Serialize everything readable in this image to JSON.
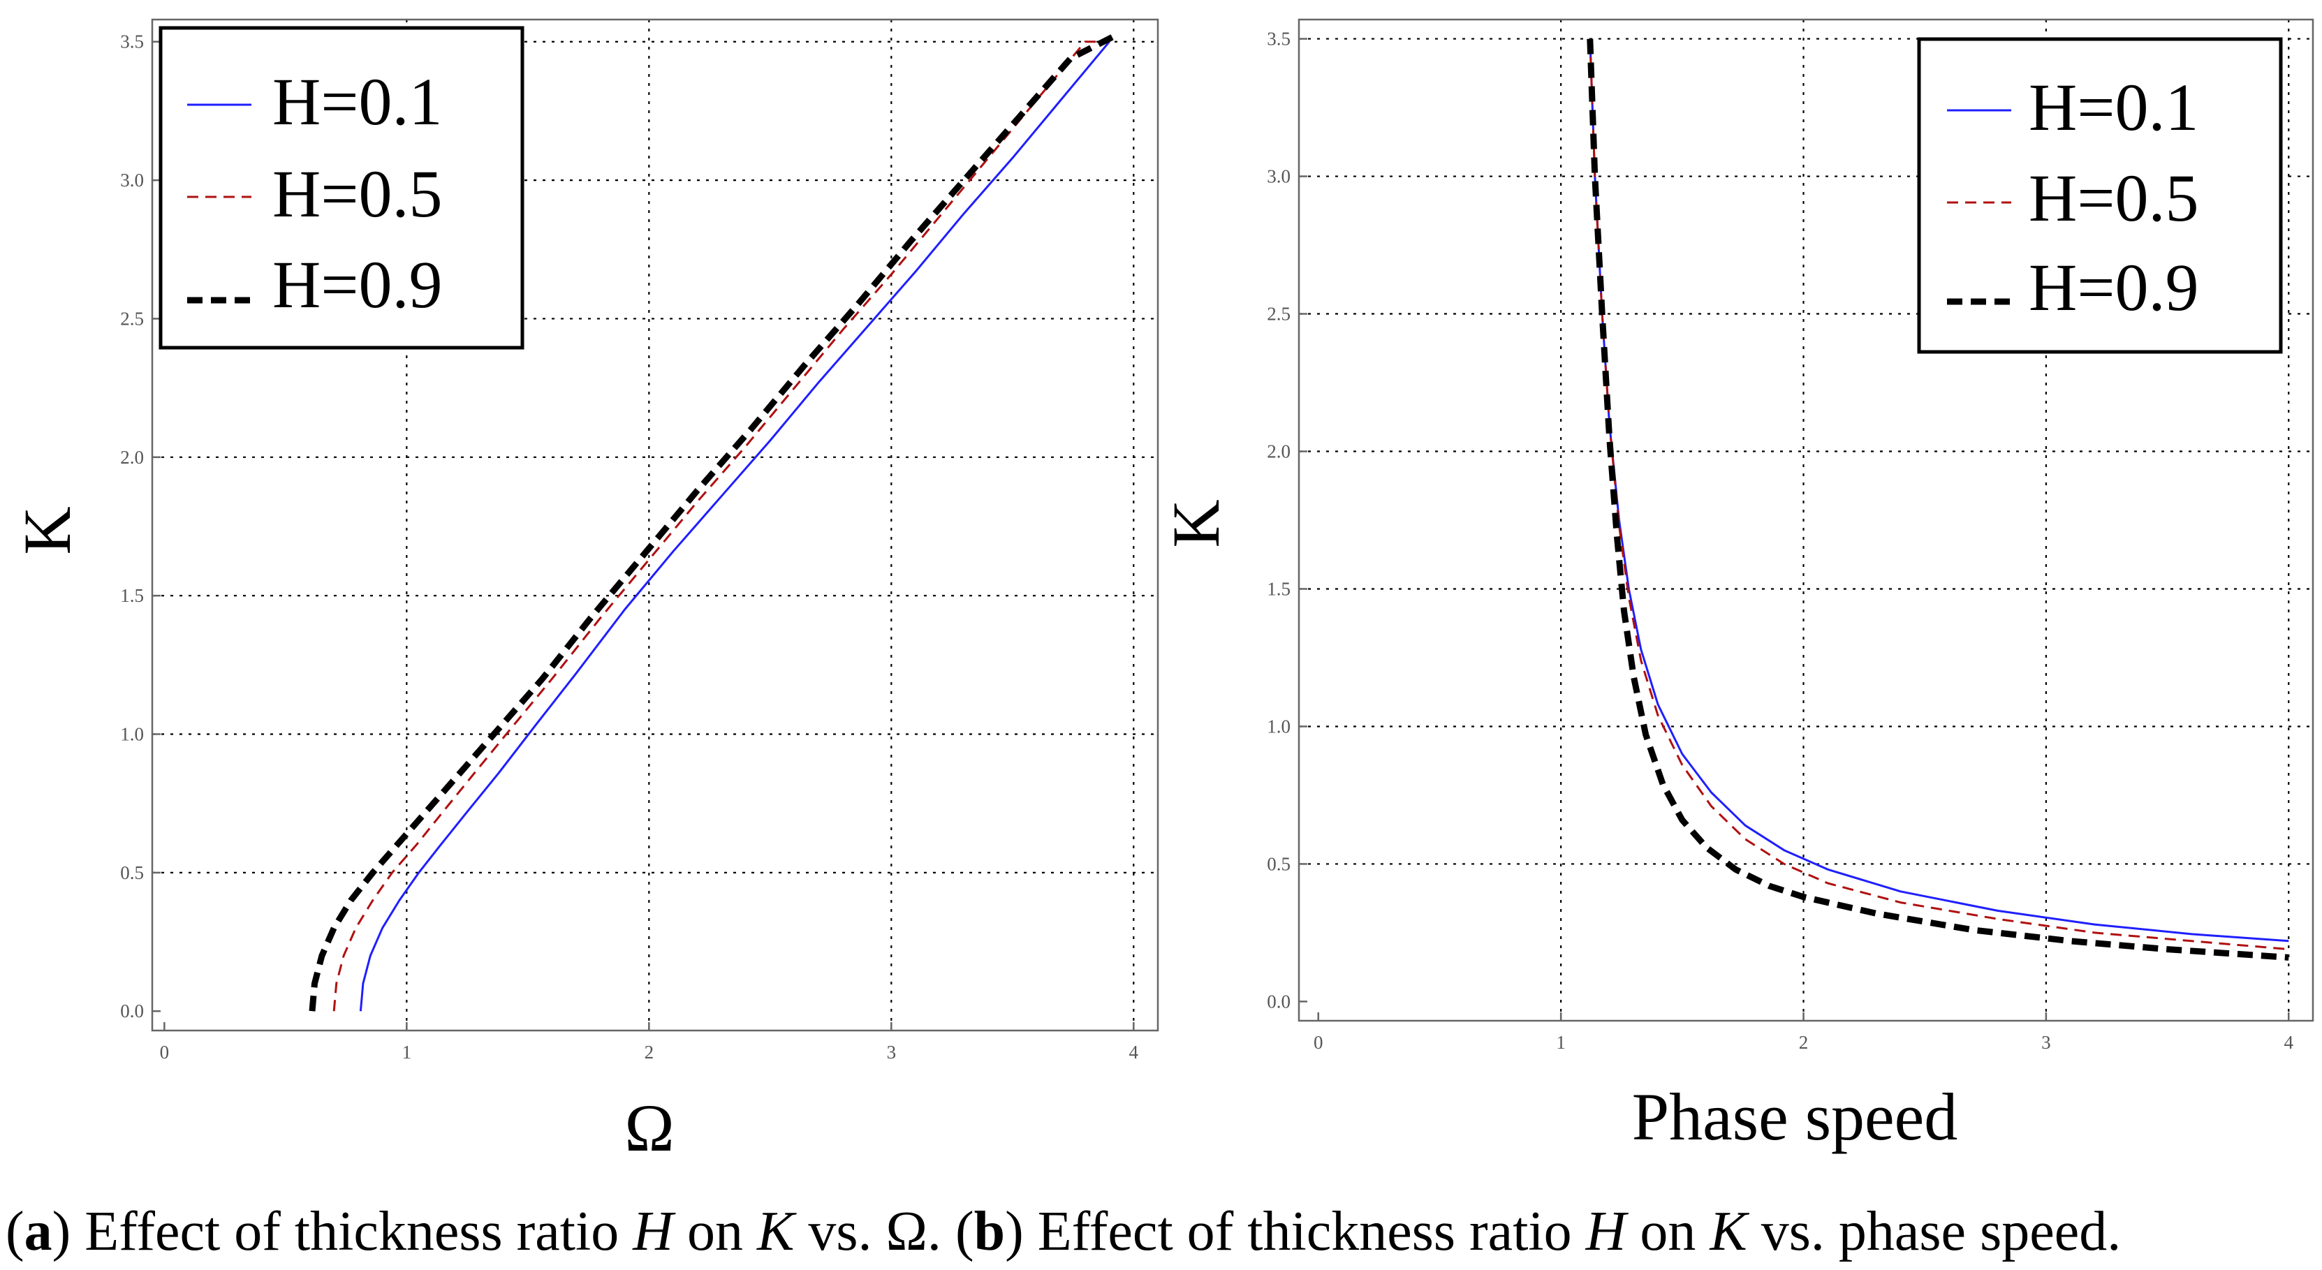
{
  "chart_data": [
    {
      "id": "a",
      "type": "line",
      "xlabel": "Ω",
      "ylabel": "K",
      "xlim": [
        -0.05,
        4.1
      ],
      "ylim": [
        -0.07,
        3.58
      ],
      "xticks": [
        0,
        1,
        2,
        3,
        4
      ],
      "yticks": [
        0.0,
        0.5,
        1.0,
        1.5,
        2.0,
        2.5,
        3.0,
        3.5
      ],
      "xtick_labels": [
        "0",
        "1",
        "2",
        "3",
        "4"
      ],
      "ytick_labels": [
        "0.0",
        "0.5",
        "1.0",
        "1.5",
        "2.0",
        "2.5",
        "3.0",
        "3.5"
      ],
      "grid": true,
      "legend_position": "top-left",
      "series": [
        {
          "name": "H=0.1",
          "color": "#1f1fff",
          "style": "solid",
          "x": [
            0.81,
            0.82,
            0.85,
            0.9,
            0.97,
            1.05,
            1.14,
            1.25,
            1.38,
            1.53,
            1.7,
            1.9,
            2.1,
            2.3,
            2.5,
            2.7,
            2.9,
            3.1,
            3.3,
            3.5,
            3.7,
            3.9
          ],
          "y": [
            0.0,
            0.1,
            0.2,
            0.3,
            0.4,
            0.5,
            0.6,
            0.72,
            0.86,
            1.03,
            1.22,
            1.45,
            1.66,
            1.86,
            2.06,
            2.27,
            2.47,
            2.67,
            2.88,
            3.08,
            3.29,
            3.5
          ]
        },
        {
          "name": "H=0.5",
          "color": "#b01010",
          "style": "dashed",
          "x": [
            0.7,
            0.71,
            0.74,
            0.79,
            0.86,
            0.94,
            1.04,
            1.15,
            1.28,
            1.43,
            1.6,
            1.8,
            2.0,
            2.2,
            2.4,
            2.6,
            2.8,
            3.0,
            3.2,
            3.4,
            3.6,
            3.8,
            3.9
          ],
          "y": [
            0.0,
            0.1,
            0.2,
            0.3,
            0.4,
            0.5,
            0.6,
            0.72,
            0.86,
            1.02,
            1.2,
            1.42,
            1.63,
            1.84,
            2.04,
            2.25,
            2.46,
            2.66,
            2.87,
            3.08,
            3.29,
            3.5,
            3.5
          ]
        },
        {
          "name": "H=0.9",
          "color": "#000000",
          "style": "dashed-bold",
          "x": [
            0.61,
            0.62,
            0.65,
            0.7,
            0.77,
            0.86,
            0.96,
            1.08,
            1.22,
            1.38,
            1.56,
            1.76,
            1.98,
            2.2,
            2.42,
            2.64,
            2.86,
            3.08,
            3.3,
            3.52,
            3.74,
            3.92
          ],
          "y": [
            0.0,
            0.1,
            0.2,
            0.3,
            0.4,
            0.5,
            0.6,
            0.72,
            0.86,
            1.02,
            1.2,
            1.42,
            1.65,
            1.88,
            2.1,
            2.33,
            2.55,
            2.78,
            3.0,
            3.22,
            3.44,
            3.52
          ]
        }
      ]
    },
    {
      "id": "b",
      "type": "line",
      "xlabel": "Phase speed",
      "ylabel": "K",
      "xlim": [
        -0.08,
        4.1
      ],
      "ylim": [
        -0.07,
        3.57
      ],
      "xticks": [
        0,
        1,
        2,
        3,
        4
      ],
      "yticks": [
        0.0,
        0.5,
        1.0,
        1.5,
        2.0,
        2.5,
        3.0,
        3.5
      ],
      "xtick_labels": [
        "0",
        "1",
        "2",
        "3",
        "4"
      ],
      "ytick_labels": [
        "0.0",
        "0.5",
        "1.0",
        "1.5",
        "2.0",
        "2.5",
        "3.0",
        "3.5"
      ],
      "grid": true,
      "legend_position": "top-right",
      "series": [
        {
          "name": "H=0.1",
          "color": "#1f1fff",
          "style": "solid",
          "x": [
            1.12,
            1.14,
            1.17,
            1.2,
            1.24,
            1.28,
            1.33,
            1.4,
            1.5,
            1.62,
            1.76,
            1.92,
            2.1,
            2.4,
            2.8,
            3.2,
            3.6,
            4.0
          ],
          "y": [
            3.5,
            3.0,
            2.5,
            2.1,
            1.75,
            1.5,
            1.28,
            1.08,
            0.9,
            0.76,
            0.64,
            0.55,
            0.48,
            0.4,
            0.33,
            0.28,
            0.245,
            0.22
          ]
        },
        {
          "name": "H=0.5",
          "color": "#b01010",
          "style": "dashed",
          "x": [
            1.12,
            1.14,
            1.17,
            1.2,
            1.24,
            1.28,
            1.33,
            1.4,
            1.5,
            1.62,
            1.76,
            1.92,
            2.1,
            2.4,
            2.8,
            3.2,
            3.6,
            4.0
          ],
          "y": [
            3.5,
            3.0,
            2.5,
            2.1,
            1.73,
            1.47,
            1.24,
            1.04,
            0.86,
            0.71,
            0.59,
            0.5,
            0.43,
            0.36,
            0.3,
            0.25,
            0.22,
            0.19
          ]
        },
        {
          "name": "H=0.9",
          "color": "#000000",
          "style": "dashed-bold",
          "x": [
            1.12,
            1.14,
            1.17,
            1.2,
            1.23,
            1.26,
            1.3,
            1.35,
            1.42,
            1.5,
            1.6,
            1.72,
            1.86,
            2.0,
            2.3,
            2.7,
            3.1,
            3.5,
            4.0
          ],
          "y": [
            3.5,
            3.0,
            2.5,
            2.05,
            1.7,
            1.42,
            1.18,
            0.97,
            0.79,
            0.66,
            0.56,
            0.48,
            0.42,
            0.38,
            0.32,
            0.26,
            0.22,
            0.19,
            0.16
          ]
        }
      ]
    }
  ],
  "caption": {
    "a_label": "a",
    "a_text": " Effect of thickness ratio ",
    "a_var1": "H",
    "a_mid": " on ",
    "a_var2": "K",
    "a_end": " vs. Ω. ",
    "b_label": "b",
    "b_text": " Effect of thickness ratio ",
    "b_var1": "H",
    "b_mid": " on ",
    "b_var2": "K",
    "b_end": " vs. phase speed."
  }
}
